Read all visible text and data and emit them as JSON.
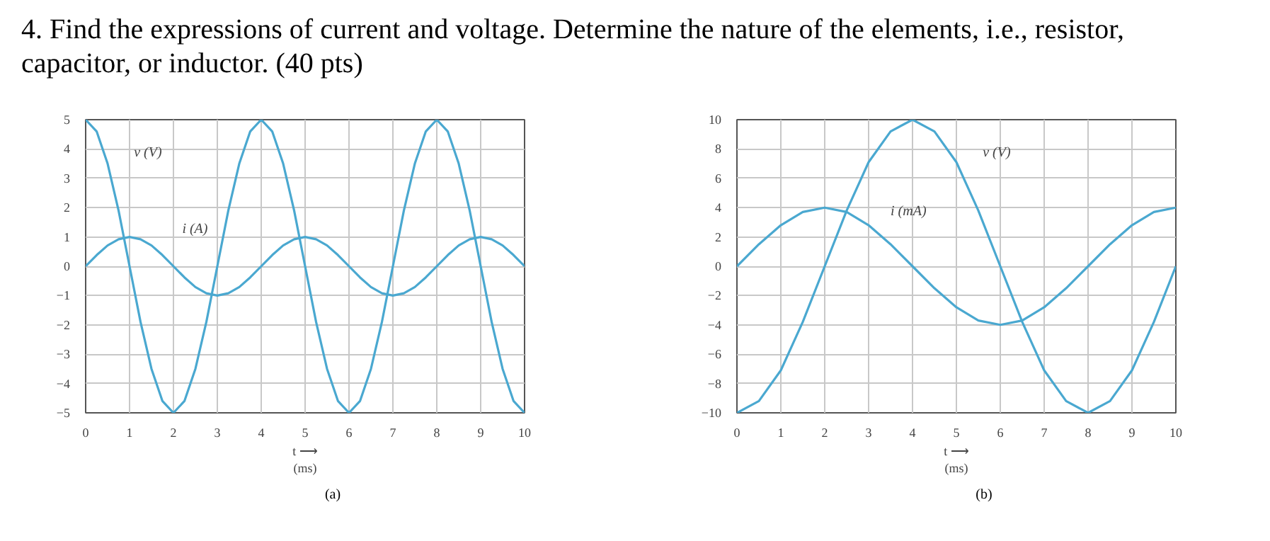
{
  "chart_data": [
    {
      "type": "line",
      "title": "4.  Find the expressions of current and voltage. Determine the nature of the elements, i.e., resistor, capacitor, or inductor. (40 pts)",
      "xlabel": "t ⟶\n(ms)",
      "xlim": [
        0,
        10
      ],
      "xticks": [
        0,
        1,
        2,
        3,
        4,
        5,
        6,
        7,
        8,
        9,
        10
      ],
      "ylim": [
        -5,
        5
      ],
      "yticks": [
        -5,
        -4,
        -3,
        -2,
        -1,
        0,
        1,
        2,
        3,
        4,
        5
      ],
      "grid": true,
      "marker": "none",
      "line_style": "solid",
      "x": [
        0,
        0.25,
        0.5,
        0.75,
        1,
        1.25,
        1.5,
        1.75,
        2,
        2.25,
        2.5,
        2.75,
        3,
        3.25,
        3.5,
        3.75,
        4,
        4.25,
        4.5,
        4.75,
        5,
        5.25,
        5.5,
        5.75,
        6,
        6.25,
        6.5,
        6.75,
        7,
        7.25,
        7.5,
        7.75,
        8,
        8.25,
        8.5,
        8.75,
        9,
        9.25,
        9.5,
        9.75,
        10
      ],
      "series": [
        {
          "color": "#4aa8d0",
          "values": [
            5,
            4.6,
            3.5,
            1.9,
            0,
            -1.9,
            -3.5,
            -4.6,
            -5,
            -4.6,
            -3.5,
            -1.9,
            0,
            1.9,
            3.5,
            4.6,
            5,
            4.6,
            3.5,
            1.9,
            0,
            -1.9,
            -3.5,
            -4.6,
            -5,
            -4.6,
            -3.5,
            -1.9,
            0,
            1.9,
            3.5,
            4.6,
            5,
            4.6,
            3.5,
            1.9,
            0,
            -1.9,
            -3.5,
            -4.6,
            -5
          ]
        },
        {
          "color": "#4aa8d0",
          "values": [
            0,
            0.38,
            0.71,
            0.92,
            1,
            0.92,
            0.71,
            0.38,
            0,
            -0.38,
            -0.71,
            -0.92,
            -1,
            -0.92,
            -0.71,
            -0.38,
            0,
            0.38,
            0.71,
            0.92,
            1,
            0.92,
            0.71,
            0.38,
            0,
            -0.38,
            -0.71,
            -0.92,
            -1,
            -0.92,
            -0.71,
            -0.38,
            0,
            0.38,
            0.71,
            0.92,
            1,
            0.92,
            0.71,
            0.38,
            0
          ]
        }
      ],
      "annotations": [
        "v (V)",
        "i (A)",
        "(a)"
      ]
    },
    {
      "type": "line",
      "xlabel": "t ⟶\n(ms)",
      "xlim": [
        0,
        10
      ],
      "xticks": [
        0,
        1,
        2,
        3,
        4,
        5,
        6,
        7,
        8,
        9,
        10
      ],
      "ylim": [
        -10,
        10
      ],
      "yticks": [
        -10,
        -8,
        -6,
        -4,
        -2,
        0,
        2,
        4,
        6,
        8,
        10
      ],
      "grid": true,
      "marker": "none",
      "line_style": "solid",
      "x": [
        0,
        0.5,
        1,
        1.5,
        2,
        2.5,
        3,
        3.5,
        4,
        4.5,
        5,
        5.5,
        6,
        6.5,
        7,
        7.5,
        8,
        8.5,
        9,
        9.5,
        10
      ],
      "series": [
        {
          "color": "#4aa8d0",
          "values": [
            -10,
            -9.2,
            -7.1,
            -3.8,
            0,
            3.8,
            7.1,
            9.2,
            10,
            9.2,
            7.1,
            3.8,
            0,
            -3.8,
            -7.1,
            -9.2,
            -10,
            -9.2,
            -7.1,
            -3.8,
            0
          ]
        },
        {
          "color": "#4aa8d0",
          "values": [
            0,
            1.5,
            2.8,
            3.7,
            4,
            3.7,
            2.8,
            1.5,
            0,
            -1.5,
            -2.8,
            -3.7,
            -4,
            -3.7,
            -2.8,
            -1.5,
            0,
            1.5,
            2.8,
            3.7,
            4
          ]
        }
      ],
      "annotations": [
        "v (V)",
        "i (mA)",
        "(b)"
      ]
    }
  ]
}
